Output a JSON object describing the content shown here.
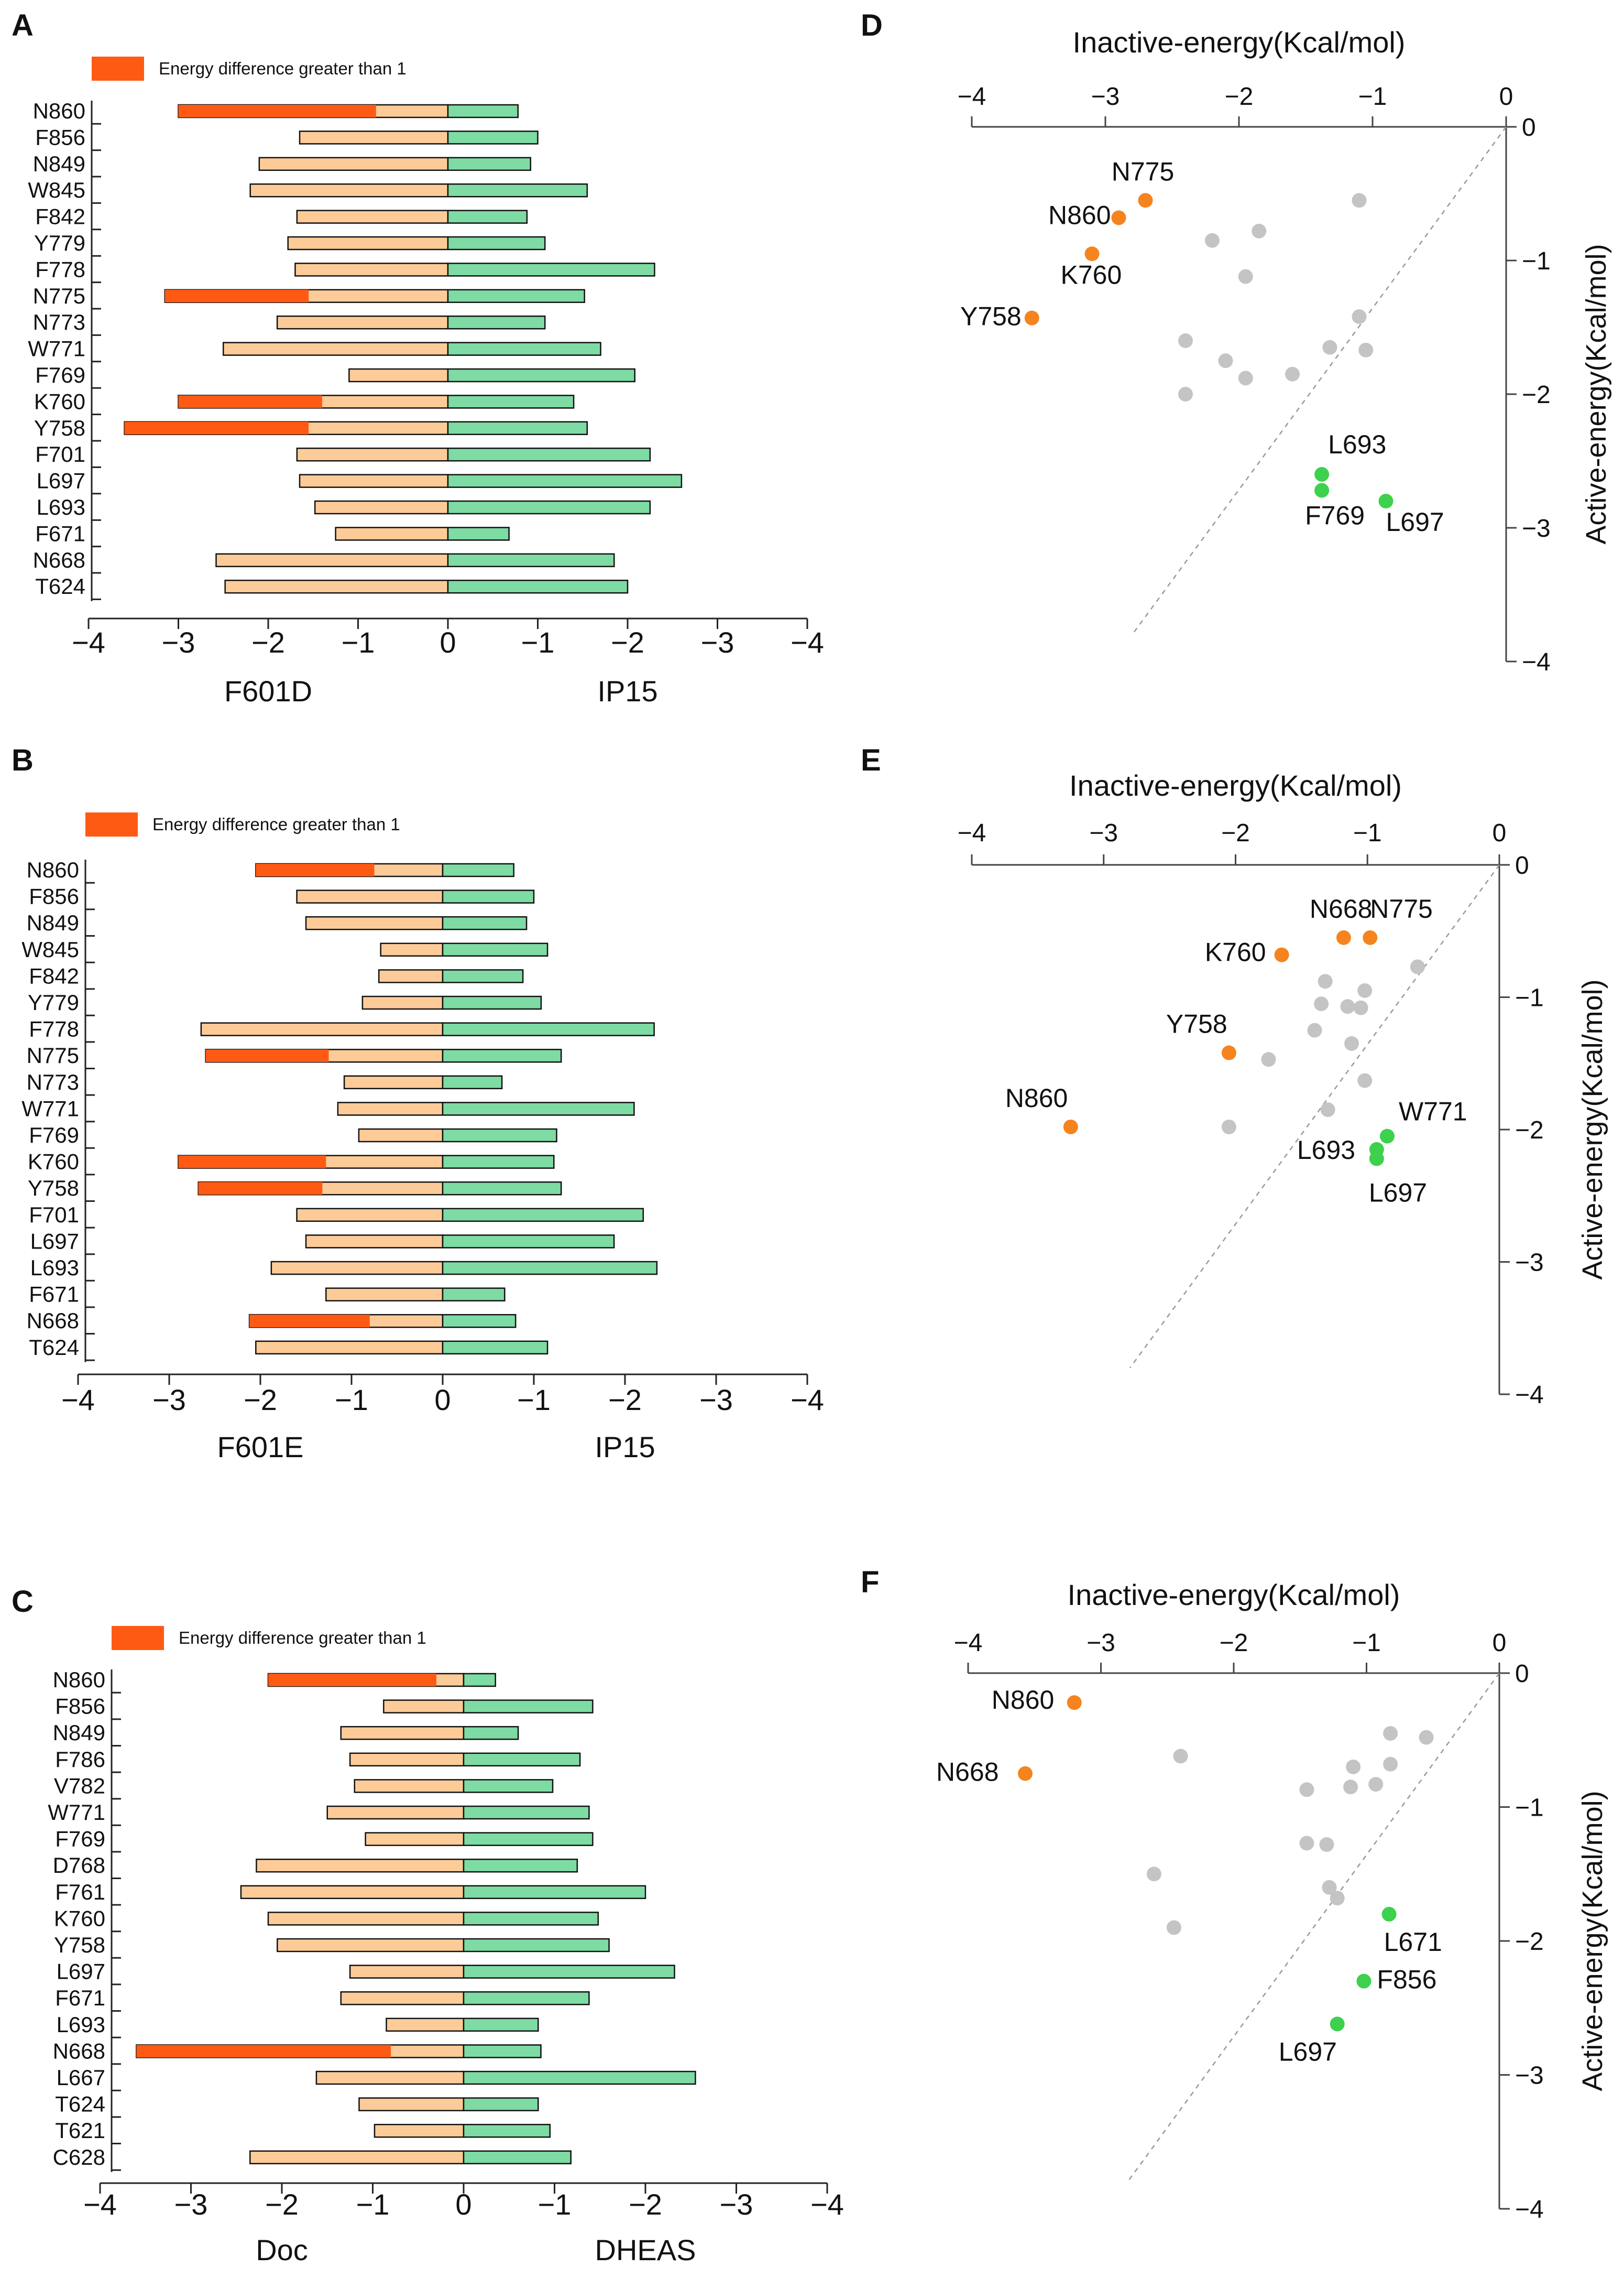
{
  "colors": {
    "mutant": "#FDCB98",
    "wildtype": "#7DDBA3",
    "highlight": "#FF5A14",
    "orange_point": "#F5841F",
    "green_point": "#3DD14D",
    "gray_point": "#C4C4C4",
    "axis": "#444444"
  },
  "chart_data": [
    {
      "panel": "A",
      "type": "bar",
      "legend": "Energy difference greater than 1",
      "categories": [
        "N860",
        "F856",
        "N849",
        "W845",
        "F842",
        "Y779",
        "F778",
        "N775",
        "N773",
        "W771",
        "F769",
        "K760",
        "Y758",
        "F701",
        "L697",
        "L693",
        "F671",
        "N668",
        "T624"
      ],
      "left_series": {
        "name": "F601D",
        "values": [
          -3.0,
          -1.65,
          -2.1,
          -2.2,
          -1.68,
          -1.78,
          -1.7,
          -3.15,
          -1.9,
          -2.5,
          -1.1,
          -3.0,
          -3.6,
          -1.68,
          -1.65,
          -1.48,
          -1.25,
          -2.58,
          -2.48
        ]
      },
      "right_series": {
        "name": "IP15",
        "values": [
          -0.78,
          -1.0,
          -0.92,
          -1.55,
          -0.88,
          -1.08,
          -2.3,
          -1.52,
          -1.08,
          -1.7,
          -2.08,
          -1.4,
          -1.55,
          -2.25,
          -2.6,
          -2.25,
          -0.68,
          -1.85,
          -2.0
        ]
      },
      "highlight_split": {
        "N860": -0.8,
        "N775": -1.55,
        "K760": -1.4,
        "Y758": -1.55
      },
      "xlim": [
        -4,
        4
      ],
      "x_ticks": [
        "−4",
        "−3",
        "−2",
        "−1",
        "0",
        "−1",
        "−2",
        "−3",
        "−4"
      ]
    },
    {
      "panel": "B",
      "type": "bar",
      "legend": "Energy difference greater than 1",
      "categories": [
        "N860",
        "F856",
        "N849",
        "W845",
        "F842",
        "Y779",
        "F778",
        "N775",
        "N773",
        "W771",
        "F769",
        "K760",
        "Y758",
        "F701",
        "L697",
        "L693",
        "F671",
        "N668",
        "T624"
      ],
      "left_series": {
        "name": "F601E",
        "values": [
          -2.05,
          -1.6,
          -1.5,
          -0.68,
          -0.7,
          -0.88,
          -2.65,
          -2.6,
          -1.08,
          -1.15,
          -0.92,
          -2.9,
          -2.68,
          -1.6,
          -1.5,
          -1.88,
          -1.28,
          -2.12,
          -2.05
        ]
      },
      "right_series": {
        "name": "IP15",
        "values": [
          -0.78,
          -1.0,
          -0.92,
          -1.15,
          -0.88,
          -1.08,
          -2.32,
          -1.3,
          -0.65,
          -2.1,
          -1.25,
          -1.22,
          -1.3,
          -2.2,
          -1.88,
          -2.35,
          -0.68,
          -0.8,
          -1.15
        ]
      },
      "highlight_split": {
        "N860": -0.75,
        "N775": -1.25,
        "K760": -1.28,
        "Y758": -1.32,
        "N668": -0.8
      },
      "xlim": [
        -4,
        4
      ],
      "x_ticks": [
        "−4",
        "−3",
        "−2",
        "−1",
        "0",
        "−1",
        "−2",
        "−3",
        "−4"
      ]
    },
    {
      "panel": "C",
      "type": "bar",
      "legend": "Energy difference greater than 1",
      "categories": [
        "N860",
        "F856",
        "N849",
        "F786",
        "V782",
        "W771",
        "F769",
        "D768",
        "F761",
        "K760",
        "Y758",
        "L697",
        "F671",
        "L693",
        "N668",
        "L667",
        "T624",
        "T621",
        "C628"
      ],
      "left_series": {
        "name": "Doc",
        "values": [
          -2.15,
          -0.88,
          -1.35,
          -1.25,
          -1.2,
          -1.5,
          -1.08,
          -2.28,
          -2.45,
          -2.15,
          -2.05,
          -1.25,
          -1.35,
          -0.85,
          -3.6,
          -1.62,
          -1.15,
          -0.98,
          -2.35
        ]
      },
      "right_series": {
        "name": "DHEAS",
        "values": [
          -0.35,
          -1.42,
          -0.6,
          -1.28,
          -0.98,
          -1.38,
          -1.42,
          -1.25,
          -2.0,
          -1.48,
          -1.6,
          -2.32,
          -1.38,
          -0.82,
          -0.85,
          -2.55,
          -0.82,
          -0.95,
          -1.18
        ]
      },
      "highlight_split": {
        "N860": -0.3,
        "N668": -0.8
      },
      "xlim": [
        -4,
        4
      ],
      "x_ticks": [
        "−4",
        "−3",
        "−2",
        "−1",
        "0",
        "−1",
        "−2",
        "−3",
        "−4"
      ]
    },
    {
      "panel": "D",
      "type": "scatter",
      "xlabel": "Inactive-energy(Kcal/mol)",
      "ylabel": "Active-energy(Kcal/mol)",
      "xlim": [
        -4,
        0
      ],
      "ylim": [
        0,
        -4
      ],
      "x_ticks": [
        "−4",
        "−3",
        "−2",
        "−1",
        "0"
      ],
      "y_ticks": [
        "0",
        "−1",
        "−2",
        "−3",
        "−4"
      ],
      "labeled_points": [
        {
          "label": "N775",
          "x": -2.7,
          "y": -0.55,
          "group": "orange"
        },
        {
          "label": "N860",
          "x": -2.9,
          "y": -0.68,
          "group": "orange"
        },
        {
          "label": "K760",
          "x": -3.1,
          "y": -0.95,
          "group": "orange"
        },
        {
          "label": "Y758",
          "x": -3.55,
          "y": -1.43,
          "group": "orange"
        },
        {
          "label": "L693",
          "x": -1.38,
          "y": -2.6,
          "group": "green"
        },
        {
          "label": "F769",
          "x": -1.38,
          "y": -2.72,
          "group": "green"
        },
        {
          "label": "L697",
          "x": -0.9,
          "y": -2.8,
          "group": "green"
        }
      ],
      "other_points": [
        {
          "x": -1.1,
          "y": -0.55
        },
        {
          "x": -2.2,
          "y": -0.85
        },
        {
          "x": -1.85,
          "y": -0.78
        },
        {
          "x": -1.95,
          "y": -1.12
        },
        {
          "x": -1.1,
          "y": -1.42
        },
        {
          "x": -2.4,
          "y": -1.6
        },
        {
          "x": -1.32,
          "y": -1.65
        },
        {
          "x": -1.05,
          "y": -1.67
        },
        {
          "x": -2.1,
          "y": -1.75
        },
        {
          "x": -1.95,
          "y": -1.88
        },
        {
          "x": -1.6,
          "y": -1.85
        },
        {
          "x": -2.4,
          "y": -2.0
        }
      ]
    },
    {
      "panel": "E",
      "type": "scatter",
      "xlabel": "Inactive-energy(Kcal/mol)",
      "ylabel": "Active-energy(Kcal/mol)",
      "xlim": [
        -4,
        0
      ],
      "ylim": [
        0,
        -4
      ],
      "x_ticks": [
        "−4",
        "−3",
        "−2",
        "−1",
        "0"
      ],
      "y_ticks": [
        "0",
        "−1",
        "−2",
        "−3",
        "−4"
      ],
      "labeled_points": [
        {
          "label": "N668",
          "x": -1.18,
          "y": -0.55,
          "group": "orange"
        },
        {
          "label": "N775",
          "x": -0.98,
          "y": -0.55,
          "group": "orange"
        },
        {
          "label": "K760",
          "x": -1.65,
          "y": -0.68,
          "group": "orange"
        },
        {
          "label": "Y758",
          "x": -2.05,
          "y": -1.42,
          "group": "orange"
        },
        {
          "label": "N860",
          "x": -3.25,
          "y": -1.98,
          "group": "orange"
        },
        {
          "label": "W771",
          "x": -0.85,
          "y": -2.05,
          "group": "green"
        },
        {
          "label": "L693",
          "x": -0.93,
          "y": -2.15,
          "group": "green"
        },
        {
          "label": "L697",
          "x": -0.93,
          "y": -2.22,
          "group": "green"
        }
      ],
      "other_points": [
        {
          "x": -0.62,
          "y": -0.77
        },
        {
          "x": -1.32,
          "y": -0.88
        },
        {
          "x": -1.02,
          "y": -0.95
        },
        {
          "x": -1.35,
          "y": -1.05
        },
        {
          "x": -1.15,
          "y": -1.07
        },
        {
          "x": -1.05,
          "y": -1.08
        },
        {
          "x": -1.4,
          "y": -1.25
        },
        {
          "x": -1.12,
          "y": -1.35
        },
        {
          "x": -1.75,
          "y": -1.47
        },
        {
          "x": -1.02,
          "y": -1.63
        },
        {
          "x": -1.3,
          "y": -1.85
        },
        {
          "x": -2.05,
          "y": -1.98
        }
      ]
    },
    {
      "panel": "F",
      "type": "scatter",
      "xlabel": "Inactive-energy(Kcal/mol)",
      "ylabel": "Active-energy(Kcal/mol)",
      "xlim": [
        -4,
        0
      ],
      "ylim": [
        0,
        -4
      ],
      "x_ticks": [
        "−4",
        "−3",
        "−2",
        "−1",
        "0"
      ],
      "y_ticks": [
        "0",
        "−1",
        "−2",
        "−3",
        "−4"
      ],
      "labeled_points": [
        {
          "label": "N860",
          "x": -3.2,
          "y": -0.22,
          "group": "orange"
        },
        {
          "label": "N668",
          "x": -3.57,
          "y": -0.75,
          "group": "orange"
        },
        {
          "label": "L671",
          "x": -0.83,
          "y": -1.8,
          "group": "green"
        },
        {
          "label": "F856",
          "x": -1.02,
          "y": -2.3,
          "group": "green"
        },
        {
          "label": "L697",
          "x": -1.22,
          "y": -2.62,
          "group": "green"
        }
      ],
      "other_points": [
        {
          "x": -0.82,
          "y": -0.45
        },
        {
          "x": -0.55,
          "y": -0.48
        },
        {
          "x": -2.4,
          "y": -0.62
        },
        {
          "x": -0.82,
          "y": -0.68
        },
        {
          "x": -1.1,
          "y": -0.7
        },
        {
          "x": -1.45,
          "y": -0.87
        },
        {
          "x": -1.12,
          "y": -0.85
        },
        {
          "x": -0.93,
          "y": -0.83
        },
        {
          "x": -1.45,
          "y": -1.27
        },
        {
          "x": -1.3,
          "y": -1.28
        },
        {
          "x": -2.6,
          "y": -1.5
        },
        {
          "x": -1.28,
          "y": -1.6
        },
        {
          "x": -1.22,
          "y": -1.68
        },
        {
          "x": -2.45,
          "y": -1.9
        }
      ]
    }
  ]
}
